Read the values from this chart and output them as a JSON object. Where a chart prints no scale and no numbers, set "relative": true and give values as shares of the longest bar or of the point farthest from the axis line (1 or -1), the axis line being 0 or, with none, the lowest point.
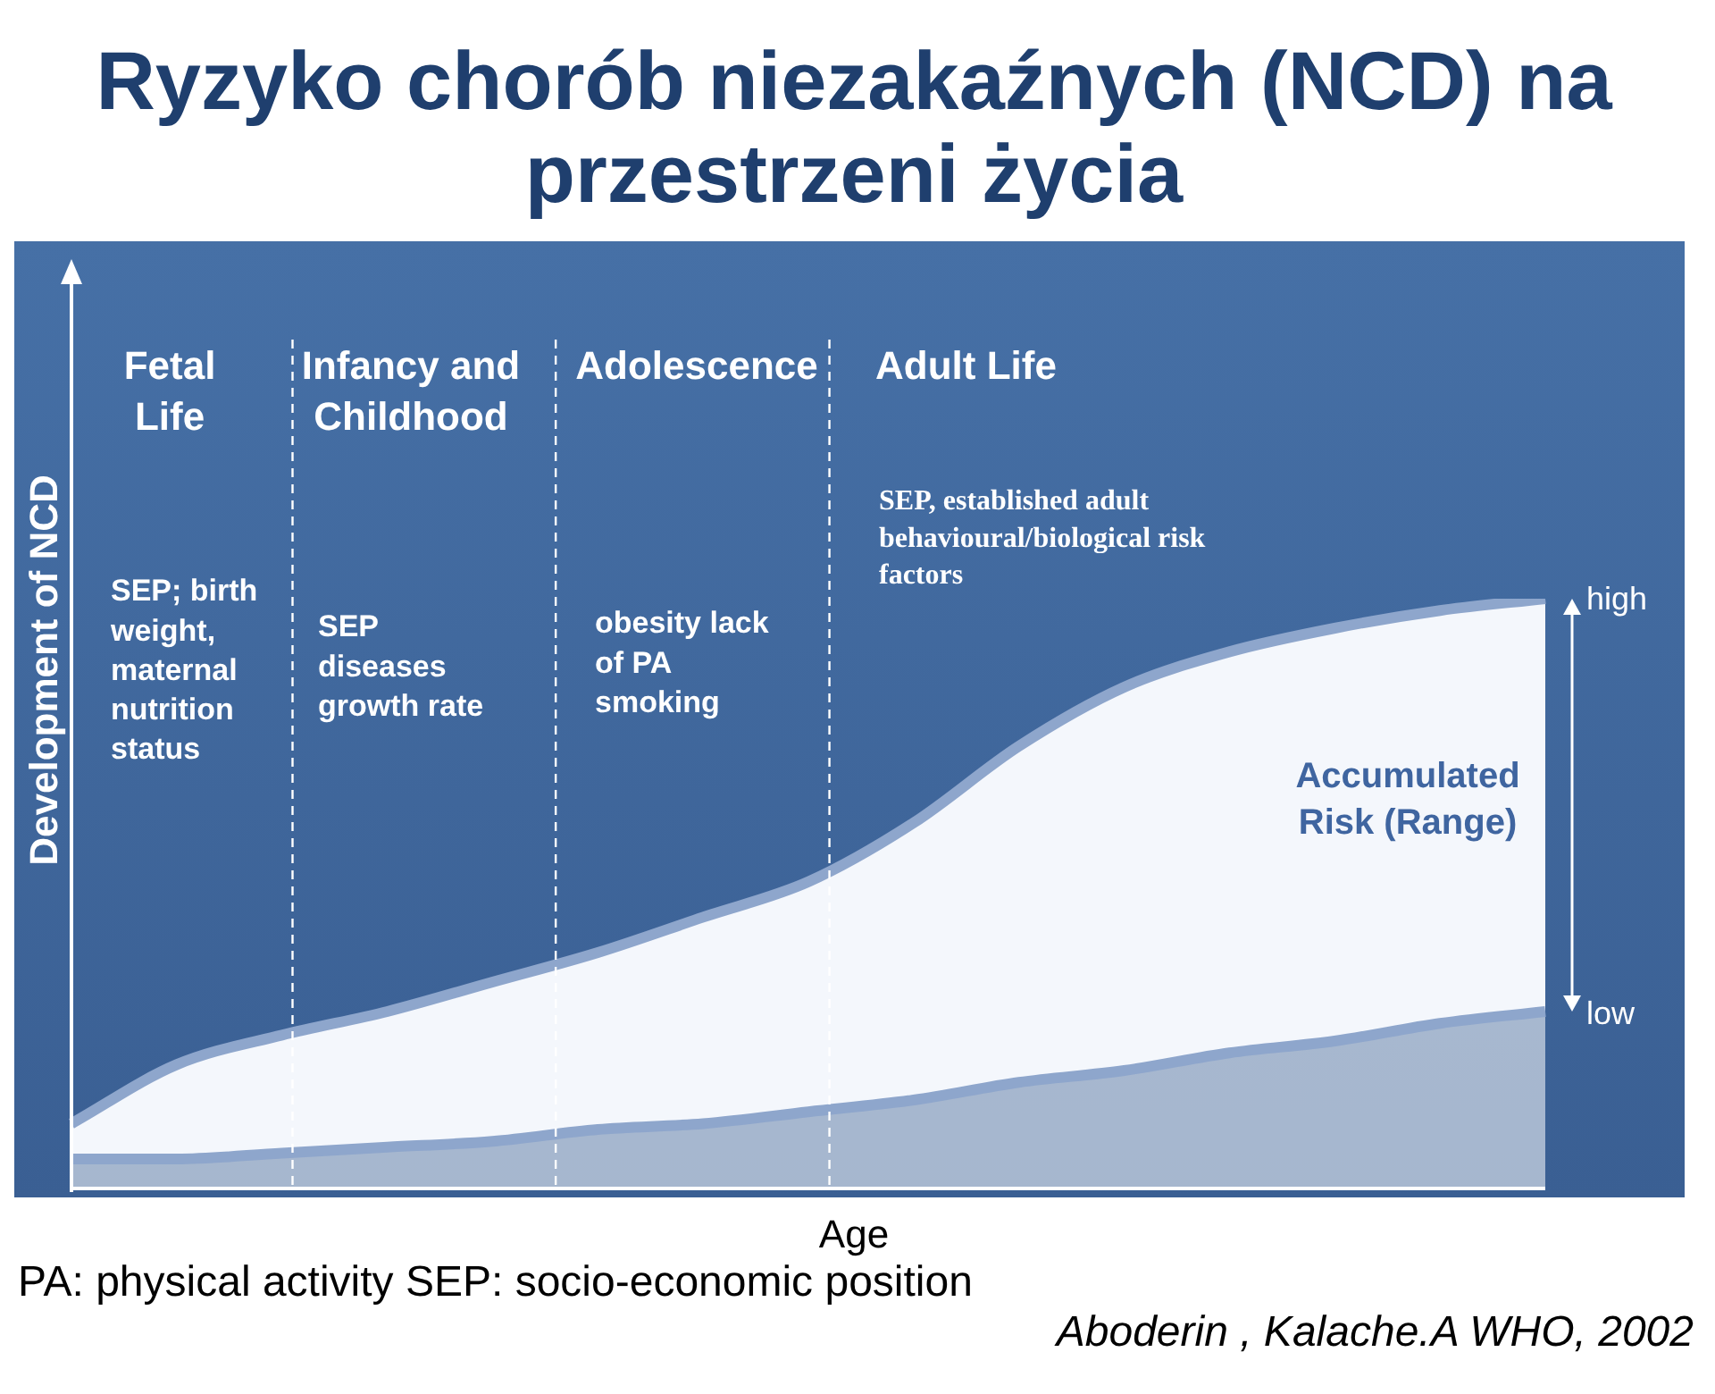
{
  "chart_data": {
    "type": "area",
    "title": "Ryzyko chorób niezakaźnych (NCD) na przestrzeni życia",
    "ylabel": "Development of NCD",
    "xlabel": "Age",
    "relative": true,
    "legend": false,
    "categories": [
      null,
      null,
      null,
      null,
      null,
      null,
      null,
      null,
      null,
      null,
      null,
      null,
      null,
      null,
      null
    ],
    "series": [
      {
        "color": "#8ea6cc",
        "values": [
          0.05,
          0.05,
          0.06,
          0.07,
          0.08,
          0.1,
          0.11,
          0.13,
          0.15,
          0.18,
          0.2,
          0.23,
          0.25,
          0.28,
          0.3
        ]
      },
      {
        "color": "#8ea6cc",
        "values": [
          0.11,
          0.21,
          0.26,
          0.3,
          0.35,
          0.4,
          0.46,
          0.52,
          0.62,
          0.75,
          0.85,
          0.91,
          0.95,
          0.98,
          1.0
        ]
      }
    ],
    "annotations": [
      "Fetal Life",
      "Infancy and Childhood",
      "Adolescence",
      "Adult Life",
      "SEP; birth weight, maternal nutrition status",
      "SEP diseases growth rate",
      "obesity lack of PA smoking",
      "SEP, established adult behavioural/biological risk factors",
      "Accumulated Risk (Range)",
      "high",
      "low",
      "PA: physical activity SEP: socio-economic position",
      "Aboderin , Kalache.A  WHO, 2002"
    ]
  }
}
